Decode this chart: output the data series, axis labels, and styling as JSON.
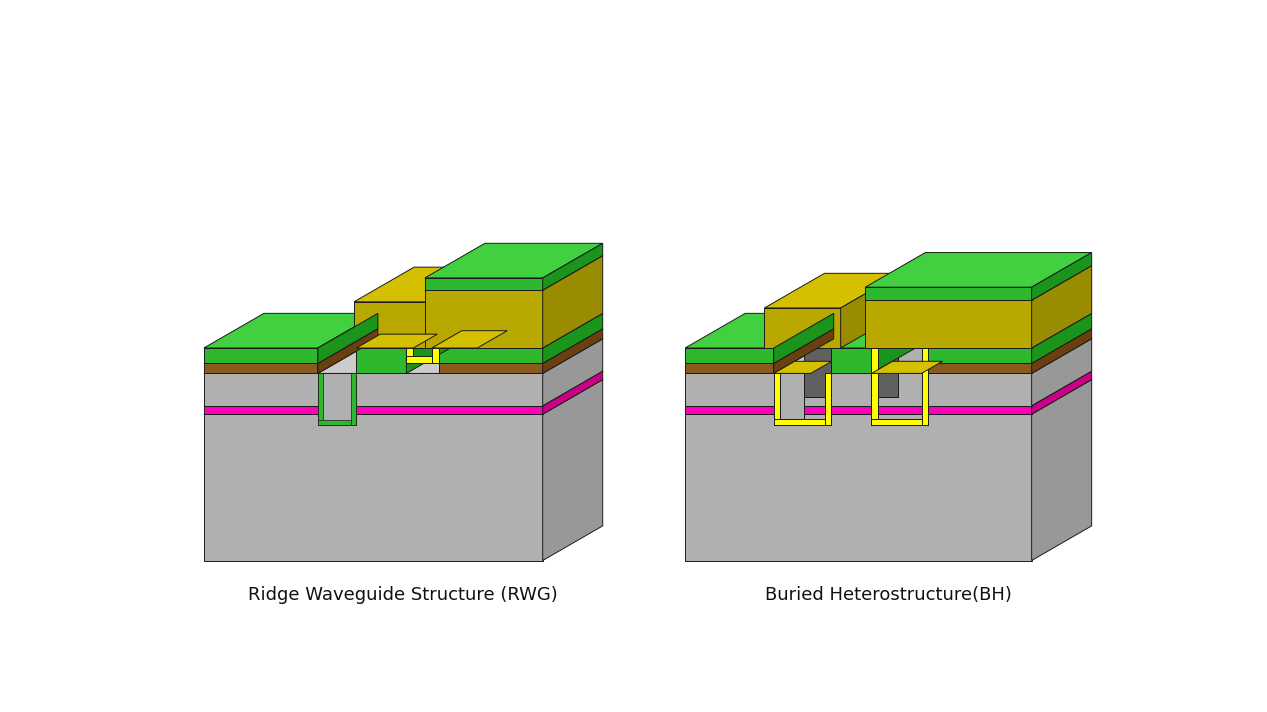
{
  "title_left": "Ridge Waveguide Structure (RWG)",
  "title_right": "Buried Heterostructure(BH)",
  "title_fontsize": 13,
  "bg_color": "#ffffff",
  "colors": {
    "gray_front": "#b0b0b0",
    "gray_top": "#cccccc",
    "gray_right": "#989898",
    "green_front": "#2db82d",
    "green_top": "#40d040",
    "green_right": "#1a941a",
    "brown_front": "#8b5a20",
    "brown_top": "#a06828",
    "brown_right": "#6b4010",
    "magenta_front": "#ff00bb",
    "magenta_top": "#ff44cc",
    "magenta_right": "#cc0088",
    "yellow_front": "#b8a800",
    "yellow_top": "#d4c000",
    "yellow_right": "#9a8c00",
    "yellow_bright": "#ffff00",
    "dark_gray_front": "#606060",
    "dark_gray_top": "#707070",
    "dark_gray_right": "#484848",
    "outline": "#1a1a1a"
  }
}
